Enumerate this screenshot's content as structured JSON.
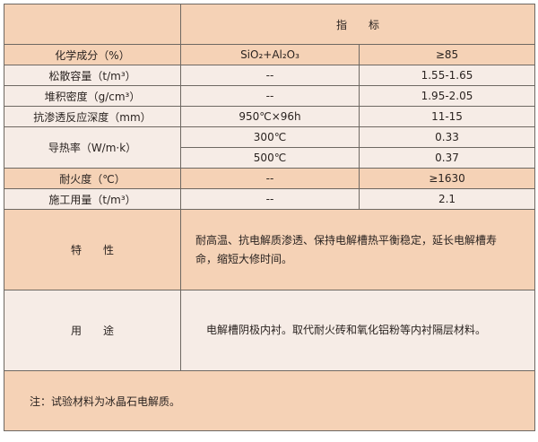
{
  "header": {
    "label": "指　　标"
  },
  "rows": [
    {
      "name": "化学成分（%）",
      "condition": "SiO₂+Al₂O₃",
      "value": "≥85"
    },
    {
      "name": "松散容量（t/m³）",
      "condition": "--",
      "value": "1.55-1.65"
    },
    {
      "name": "堆积密度（g/cm³）",
      "condition": "--",
      "value": "1.95-2.05"
    },
    {
      "name": "抗渗透反应深度（mm）",
      "condition": "950℃×96h",
      "value": "11-15"
    },
    {
      "name": "导热率（W/m·k）",
      "condition": "300℃",
      "value": "0.33"
    },
    {
      "condition": "500℃",
      "value": "0.37"
    },
    {
      "name": "耐火度（℃）",
      "condition": "--",
      "value": "≥1630"
    },
    {
      "name": "施工用量（t/m³）",
      "condition": "--",
      "value": "2.1"
    }
  ],
  "properties": {
    "label": "特　　性",
    "text": "耐高温、抗电解质渗透、保持电解槽热平衡稳定，延长电解槽寿命，缩短大修时间。"
  },
  "usage": {
    "label": "用　　途",
    "text": "电解槽阴极内衬。取代耐火砖和氧化铝粉等内衬隔层材料。"
  },
  "note": "注：试验材料为冰晶石电解质。",
  "colors": {
    "orange": "#f5d2b6",
    "light": "#f6ece6",
    "border": "#6e6862"
  }
}
